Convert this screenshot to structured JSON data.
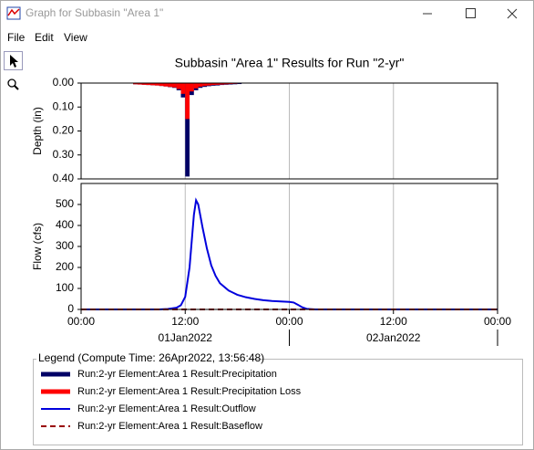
{
  "window": {
    "title": "Graph for Subbasin \"Area 1\"",
    "menu": [
      "File",
      "Edit",
      "View"
    ]
  },
  "chart_data": [
    {
      "type": "bar",
      "title": "Subbasin \"Area 1\" Results for Run \"2-yr\"",
      "ylabel": "Depth (in)",
      "y_inverted": true,
      "ylim": [
        0,
        0.4
      ],
      "yticks": [
        {
          "value": 0,
          "label": "0.00"
        },
        {
          "value": 0.1,
          "label": "0.10"
        },
        {
          "value": 0.2,
          "label": "0.20"
        },
        {
          "value": 0.3,
          "label": "0.30"
        },
        {
          "value": 0.4,
          "label": "0.40"
        }
      ],
      "xlim": [
        0,
        48
      ],
      "grid": true,
      "x": [
        6,
        6.5,
        7,
        7.5,
        8,
        8.5,
        9,
        9.5,
        10,
        10.5,
        11,
        11.5,
        12,
        12.5,
        13,
        13.5,
        14,
        14.5,
        15,
        15.5,
        16,
        16.5,
        17,
        17.5,
        18
      ],
      "series": [
        {
          "name": "Run:2-yr Element:Area 1 Result:Precipitation",
          "color": "#000066",
          "values": [
            0.005,
            0.006,
            0.007,
            0.008,
            0.009,
            0.01,
            0.012,
            0.014,
            0.017,
            0.02,
            0.03,
            0.06,
            0.39,
            0.05,
            0.03,
            0.02,
            0.016,
            0.013,
            0.011,
            0.01,
            0.008,
            0.007,
            0.006,
            0.005,
            0.004
          ]
        },
        {
          "name": "Run:2-yr Element:Area 1 Result:Precipitation Loss",
          "color": "#ff0000",
          "values": [
            0.005,
            0.006,
            0.007,
            0.008,
            0.009,
            0.01,
            0.012,
            0.014,
            0.016,
            0.018,
            0.025,
            0.045,
            0.15,
            0.035,
            0.022,
            0.015,
            0.012,
            0.01,
            0.008,
            0.007,
            0.006,
            0.005,
            0.004,
            0.003,
            0.002
          ]
        }
      ]
    },
    {
      "type": "line",
      "ylabel": "Flow (cfs)",
      "ylim": [
        0,
        600
      ],
      "yticks": [
        0,
        100,
        200,
        300,
        400,
        500
      ],
      "xlim": [
        0,
        48
      ],
      "grid": true,
      "xticks": [
        {
          "value": 0,
          "label": "00:00"
        },
        {
          "value": 12,
          "label": "12:00"
        },
        {
          "value": 24,
          "label": "00:00"
        },
        {
          "value": 36,
          "label": "12:00"
        },
        {
          "value": 48,
          "label": "00:00"
        }
      ],
      "date_labels": [
        {
          "value": 12,
          "label": "01Jan2022"
        },
        {
          "value": 36,
          "label": "02Jan2022"
        }
      ],
      "series": [
        {
          "name": "Run:2-yr Element:Area 1 Result:Outflow",
          "color": "#0000dd",
          "x": [
            0,
            9,
            10,
            11,
            11.5,
            12,
            12.5,
            13,
            13.25,
            13.5,
            14,
            14.5,
            15,
            15.5,
            16,
            17,
            18,
            19,
            20,
            21,
            22,
            23,
            24,
            24.5,
            25,
            25.5,
            26,
            27,
            48
          ],
          "values": [
            0,
            0,
            2,
            8,
            20,
            60,
            200,
            450,
            520,
            500,
            390,
            290,
            210,
            160,
            125,
            90,
            70,
            58,
            50,
            44,
            40,
            38,
            36,
            33,
            22,
            10,
            3,
            0,
            0
          ]
        },
        {
          "name": "Run:2-yr Element:Area 1 Result:Baseflow",
          "color": "#990000",
          "dash": true,
          "x": [
            0,
            48
          ],
          "values": [
            0,
            0
          ]
        }
      ]
    }
  ],
  "legend": {
    "title": "Legend (Compute Time: 26Apr2022, 13:56:48)"
  }
}
